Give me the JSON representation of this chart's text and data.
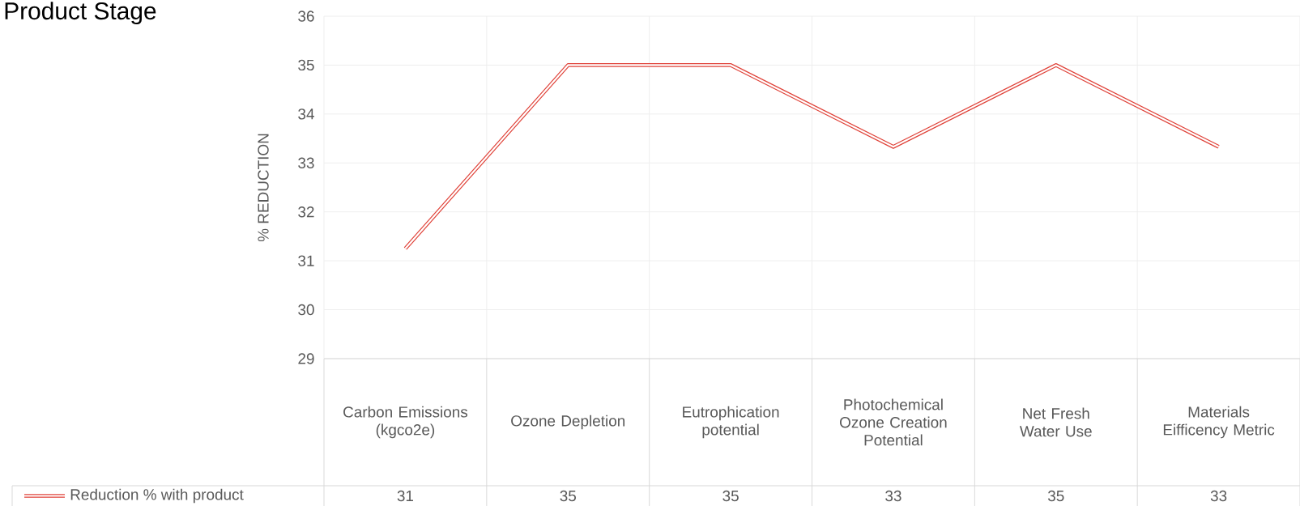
{
  "chart_data": {
    "type": "line",
    "title": "Product Stage",
    "ylabel": "% REDUCTION",
    "categories": [
      "Carbon Emissions (kgco2e)",
      "Ozone Depletion",
      "Eutrophication potential",
      "Photochemical Ozone Creation Potential",
      "Net Fresh Water Use",
      "Materials Eifficency Metric"
    ],
    "series": [
      {
        "name": "Reduction % with product",
        "color": "#e0433a",
        "values": [
          31.25,
          35,
          35,
          33.33,
          35,
          33.33
        ],
        "value_labels": [
          "31",
          "35",
          "35",
          "33",
          "35",
          "33"
        ]
      }
    ],
    "ylim": [
      29,
      36
    ],
    "yticks": [
      29,
      30,
      31,
      32,
      33,
      34,
      35,
      36
    ],
    "grid": true
  }
}
